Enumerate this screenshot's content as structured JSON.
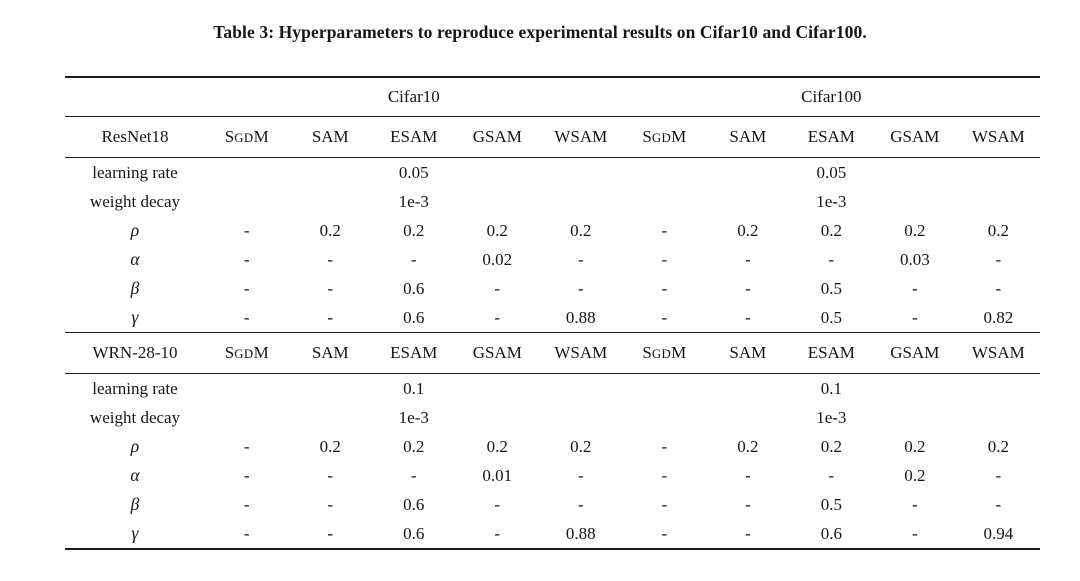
{
  "title": "Table 3: Hyperparameters to reproduce experimental results on Cifar10 and Cifar100.",
  "colors": {
    "background": "#ffffff",
    "text": "#151515",
    "rule": "#1c1c1c"
  },
  "table": {
    "dataset_headers": [
      "Cifar10",
      "Cifar100"
    ],
    "optimizers": [
      {
        "name": "SGDM",
        "parts": [
          {
            "t": "S"
          },
          {
            "t": "GD",
            "sc": true
          },
          {
            "t": "M"
          }
        ]
      },
      {
        "name": "SAM"
      },
      {
        "name": "ESAM"
      },
      {
        "name": "GSAM"
      },
      {
        "name": "WSAM"
      }
    ],
    "sections": [
      {
        "model": "ResNet18",
        "rows": [
          {
            "label": "learning rate",
            "span_values": [
              "0.05",
              "0.05"
            ]
          },
          {
            "label": "weight decay",
            "span_values": [
              "1e-3",
              "1e-3"
            ]
          },
          {
            "label": "ρ",
            "greek": true,
            "values": [
              "-",
              "0.2",
              "0.2",
              "0.2",
              "0.2",
              "-",
              "0.2",
              "0.2",
              "0.2",
              "0.2"
            ]
          },
          {
            "label": "α",
            "greek": true,
            "values": [
              "-",
              "-",
              "-",
              "0.02",
              "-",
              "-",
              "-",
              "-",
              "0.03",
              "-"
            ]
          },
          {
            "label": "β",
            "greek": true,
            "values": [
              "-",
              "-",
              "0.6",
              "-",
              "-",
              "-",
              "-",
              "0.5",
              "-",
              "-"
            ]
          },
          {
            "label": "γ",
            "greek": true,
            "values": [
              "-",
              "-",
              "0.6",
              "-",
              "0.88",
              "-",
              "-",
              "0.5",
              "-",
              "0.82"
            ]
          }
        ]
      },
      {
        "model": "WRN-28-10",
        "rows": [
          {
            "label": "learning rate",
            "span_values": [
              "0.1",
              "0.1"
            ]
          },
          {
            "label": "weight decay",
            "span_values": [
              "1e-3",
              "1e-3"
            ]
          },
          {
            "label": "ρ",
            "greek": true,
            "values": [
              "-",
              "0.2",
              "0.2",
              "0.2",
              "0.2",
              "-",
              "0.2",
              "0.2",
              "0.2",
              "0.2"
            ]
          },
          {
            "label": "α",
            "greek": true,
            "values": [
              "-",
              "-",
              "-",
              "0.01",
              "-",
              "-",
              "-",
              "-",
              "0.2",
              "-"
            ]
          },
          {
            "label": "β",
            "greek": true,
            "values": [
              "-",
              "-",
              "0.6",
              "-",
              "-",
              "-",
              "-",
              "0.5",
              "-",
              "-"
            ]
          },
          {
            "label": "γ",
            "greek": true,
            "values": [
              "-",
              "-",
              "0.6",
              "-",
              "0.88",
              "-",
              "-",
              "0.6",
              "-",
              "0.94"
            ]
          }
        ]
      }
    ]
  }
}
